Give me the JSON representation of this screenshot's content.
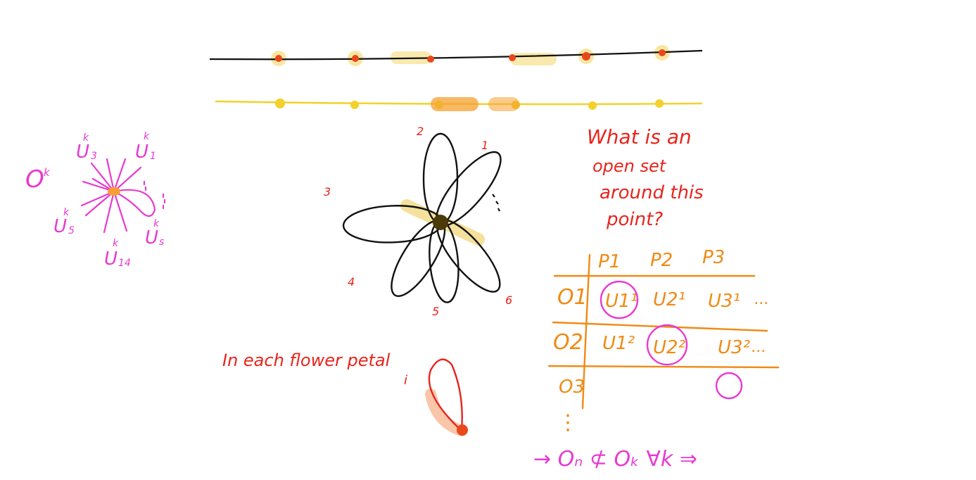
{
  "colors": {
    "ink": "#111111",
    "red": "#e8241c",
    "magenta": "#e83ad0",
    "orange": "#f08a14",
    "yellow": "#f2d22a",
    "highlight": "#f7e08a"
  },
  "left_sketch": {
    "set_label": "O",
    "set_sup": "k",
    "u_labels": [
      {
        "base": "U",
        "sub": "3",
        "sup": "k"
      },
      {
        "base": "U",
        "sub": "1",
        "sup": "k"
      },
      {
        "base": "U",
        "sub": "5",
        "sup": "k"
      },
      {
        "base": "U",
        "sub": "14",
        "sup": "k"
      },
      {
        "base": "U",
        "sub": "s",
        "sup": "k"
      }
    ]
  },
  "flower": {
    "petal_numbers": [
      "1",
      "2",
      "3",
      "4",
      "5",
      "6"
    ]
  },
  "question": {
    "lines": [
      "What is an",
      "open set",
      "around this",
      "point?"
    ]
  },
  "petal_note": {
    "text": "In each flower petal",
    "index": "i"
  },
  "table": {
    "columns": [
      "P1",
      "P2",
      "P3"
    ],
    "rows": [
      {
        "label": "O1",
        "cells": [
          "U1¹",
          "U2¹",
          "U3¹",
          "..."
        ]
      },
      {
        "label": "O2",
        "cells": [
          "U1²",
          "U2²",
          "U3²",
          "..."
        ]
      },
      {
        "label": "O3",
        "cells": [
          "",
          "",
          "",
          ""
        ]
      }
    ],
    "vdots": "⋮"
  },
  "bottom_line": {
    "text": "→ Oₙ ⊄ Oₖ ∀k ⇒"
  }
}
